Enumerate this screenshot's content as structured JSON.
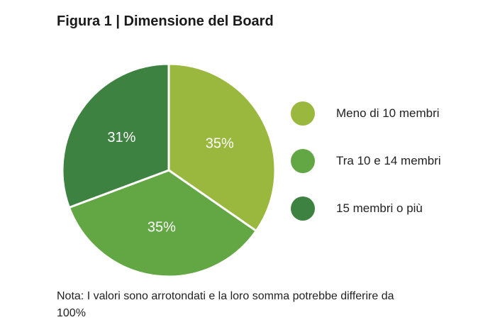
{
  "chart_data": {
    "type": "pie",
    "title": "Figura 1 | Dimensione del Board",
    "slices": [
      {
        "label": "Meno di 10 membri",
        "value": 35,
        "display": "35%",
        "color": "#9ab83e"
      },
      {
        "label": "Tra 10 e 14 membri",
        "value": 35,
        "display": "35%",
        "color": "#62a744"
      },
      {
        "label": "15 membri o più",
        "value": 31,
        "display": "31%",
        "color": "#3d8240"
      }
    ],
    "legend_position": "right",
    "note": "Nota: I valori sono arrotondati e la loro somma potrebbe differire da 100%"
  }
}
